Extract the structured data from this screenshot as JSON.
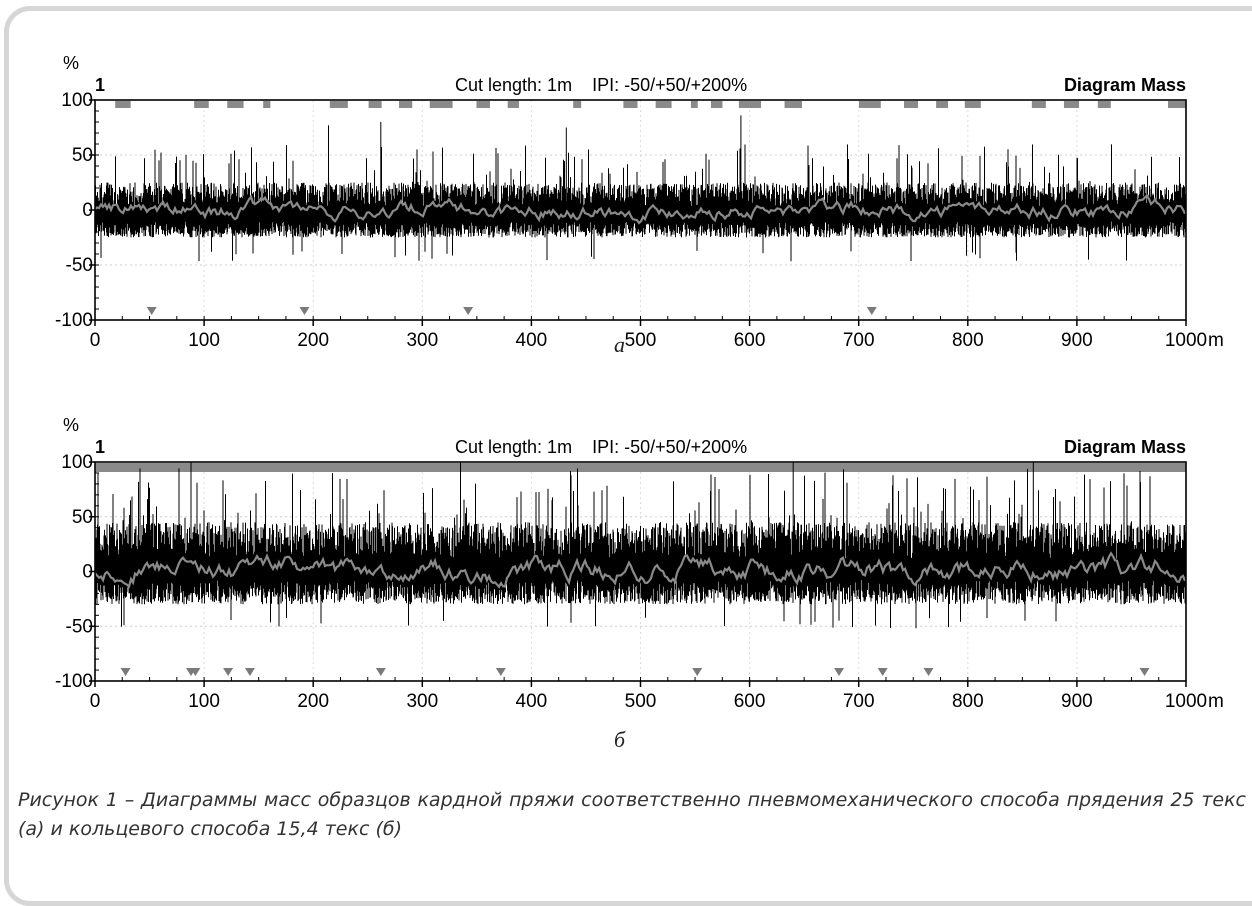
{
  "chart_data": [
    {
      "type": "line",
      "panel_label": "а",
      "unit": "%",
      "channel": "1",
      "header_center": "Cut length: 1m    IPI: -50/+50/+200%",
      "header_right": "Diagram Mass",
      "xlabel_unit": "m",
      "xlim": [
        0,
        1000
      ],
      "ylim": [
        -100,
        100
      ],
      "x_ticks": [
        0,
        100,
        200,
        300,
        400,
        500,
        600,
        700,
        800,
        900,
        1000
      ],
      "y_ticks": [
        100,
        50,
        0,
        -50,
        -100
      ],
      "series": [
        {
          "color": "#000000",
          "band": [
            -25,
            25
          ],
          "typical_peak": 60,
          "largest_peaks": [
            {
              "x": 592,
              "y": 86
            },
            {
              "x": 262,
              "y": 80
            },
            {
              "x": 214,
              "y": 77
            },
            {
              "x": 432,
              "y": 75
            }
          ]
        },
        {
          "color": "#8a8a8a",
          "mean": 0,
          "amplitude": 6
        }
      ],
      "marker_bar_color": "#8a8a8a",
      "thin_place_markers_x": [
        52,
        192,
        342,
        712
      ]
    },
    {
      "type": "line",
      "panel_label": "б",
      "unit": "%",
      "channel": "1",
      "header_center": "Cut length: 1m    IPI: -50/+50/+200%",
      "header_right": "Diagram Mass",
      "xlabel_unit": "m",
      "xlim": [
        0,
        1000
      ],
      "ylim": [
        -100,
        100
      ],
      "x_ticks": [
        0,
        100,
        200,
        300,
        400,
        500,
        600,
        700,
        800,
        900,
        1000
      ],
      "y_ticks": [
        100,
        50,
        0,
        -50,
        -100
      ],
      "series": [
        {
          "color": "#000000",
          "band": [
            -30,
            45
          ],
          "typical_peak": 95,
          "largest_peaks": [
            {
              "x": 88,
              "y": 100
            },
            {
              "x": 335,
              "y": 100
            },
            {
              "x": 640,
              "y": 100
            },
            {
              "x": 860,
              "y": 100
            }
          ]
        },
        {
          "color": "#8a8a8a",
          "mean": 2,
          "amplitude": 8
        }
      ],
      "marker_bar_color": "#8a8a8a",
      "thin_place_markers_x": [
        28,
        88,
        92,
        122,
        142,
        262,
        372,
        552,
        682,
        722,
        764,
        962
      ]
    }
  ],
  "caption": "Рисунок 1 – Диаграммы масс образцов кардной пряжи соответственно пневмомеханического способа прядения 25 текс (а) и кольцевого способа 15,4 текс (б)"
}
